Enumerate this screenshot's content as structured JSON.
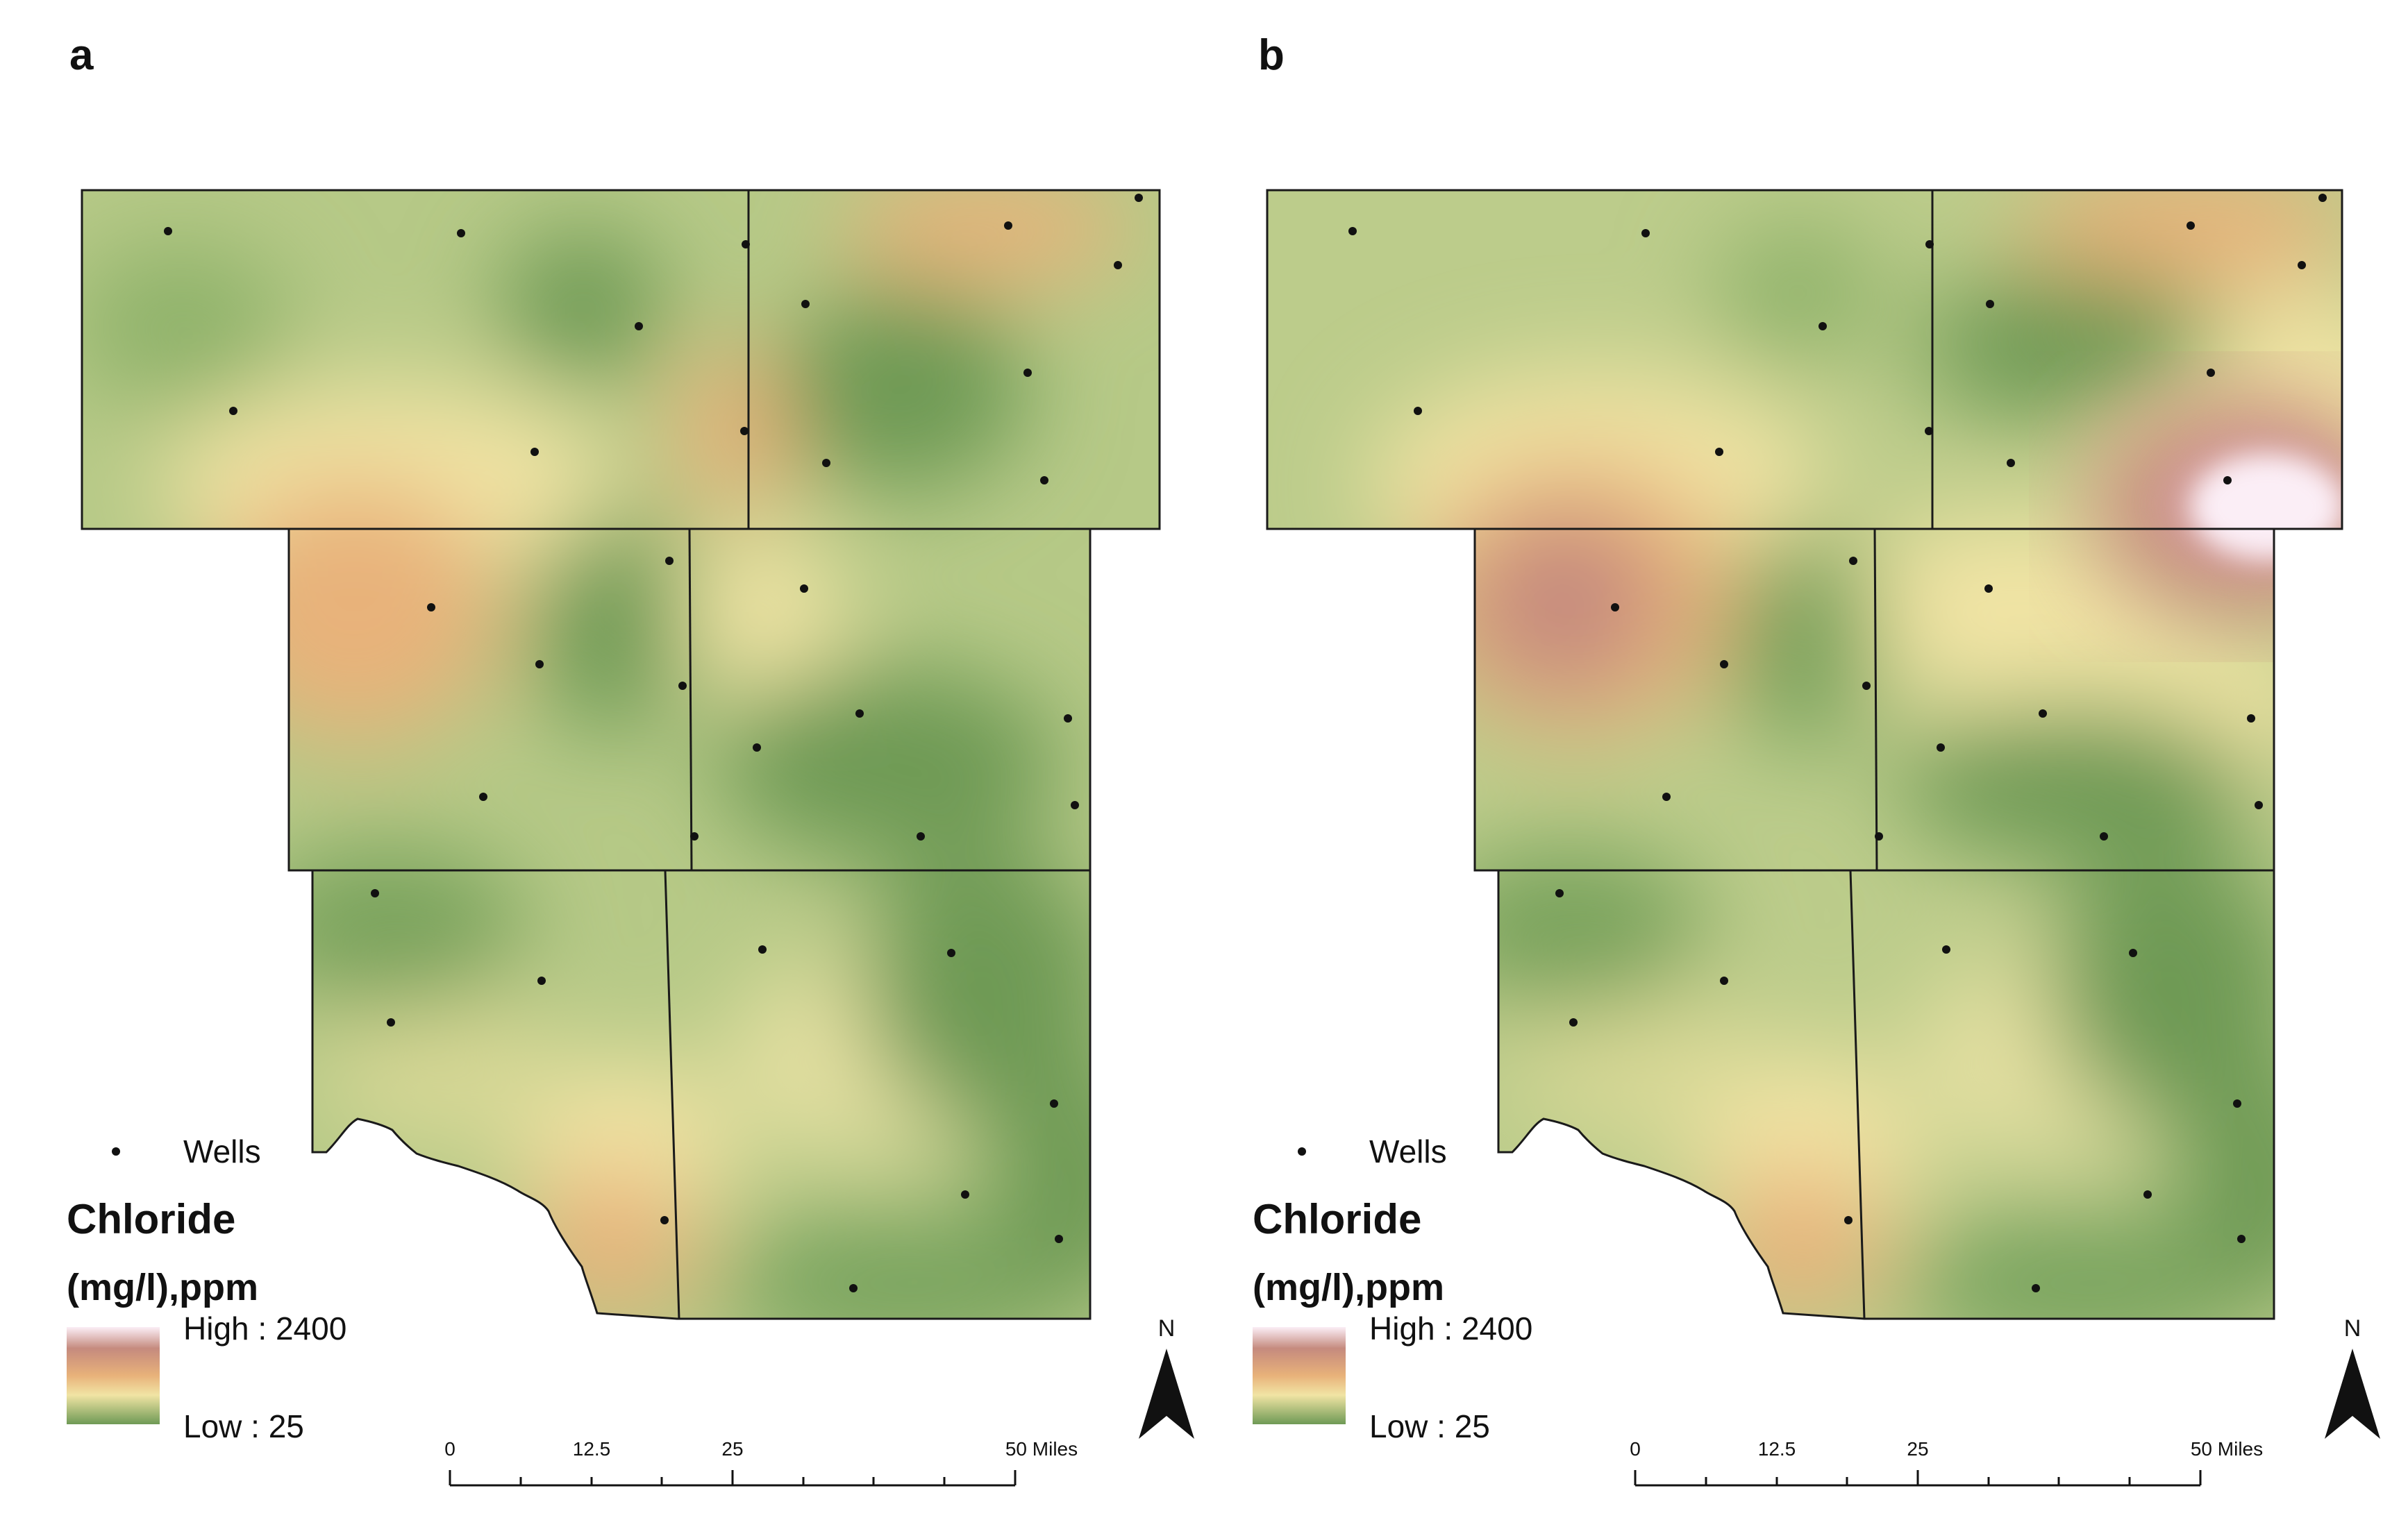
{
  "figure": {
    "panels": [
      {
        "label": "a",
        "wells_label": "Wells",
        "legend_title_1": "Chloride",
        "legend_title_2": "(mg/l),ppm",
        "legend_high": "High : 2400",
        "legend_low": "Low : 25",
        "scale_labels": [
          "0",
          "12.5",
          "25",
          "50 Miles"
        ],
        "north": "N"
      },
      {
        "label": "b",
        "wells_label": "Wells",
        "legend_title_1": "Chloride",
        "legend_title_2": "(mg/l),ppm",
        "legend_high": "High : 2400",
        "legend_low": "Low : 25",
        "scale_labels": [
          "0",
          "12.5",
          "25",
          "50 Miles"
        ],
        "north": "N"
      }
    ],
    "colors": {
      "low": "#6e9a55",
      "mid_low": "#b6c987",
      "mid": "#f1e4a4",
      "mid_high": "#e8b27a",
      "high": "#c58a7e",
      "peak": "#fbeef6",
      "outline": "#1a1a1a",
      "well": "#111111"
    }
  }
}
